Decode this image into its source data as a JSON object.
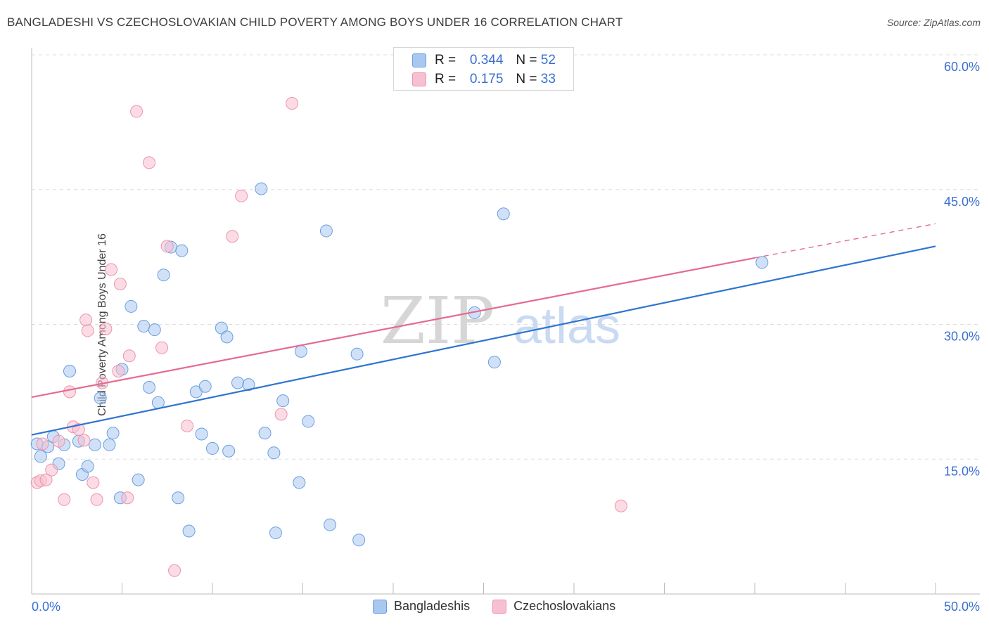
{
  "title": "BANGLADESHI VS CZECHOSLOVAKIAN CHILD POVERTY AMONG BOYS UNDER 16 CORRELATION CHART",
  "source": "Source: ZipAtlas.com",
  "watermark": {
    "zip": "ZIP",
    "atlas": "atlas"
  },
  "inset_legend": [
    {
      "r_label": "R =",
      "r_value": "0.344",
      "n_label": "N =",
      "n_value": "52",
      "color": "#a9c8f0",
      "border": "#6a9ee0"
    },
    {
      "r_label": "R =",
      "r_value": "0.175",
      "n_label": "N =",
      "n_value": "33",
      "color": "#f7c0d0",
      "border": "#ee93ad"
    }
  ],
  "chart_data": {
    "type": "scatter",
    "title": "BANGLADESHI VS CZECHOSLOVAKIAN CHILD POVERTY AMONG BOYS UNDER 16 CORRELATION CHART",
    "ylabel": "Child Poverty Among Boys Under 16",
    "xlim": [
      0,
      50
    ],
    "ylim": [
      0,
      60
    ],
    "x_tick_labels": [
      "0.0%",
      "50.0%"
    ],
    "y_ticks": [
      15,
      30,
      45,
      60
    ],
    "y_tick_labels": [
      "15.0%",
      "30.0%",
      "45.0%",
      "60.0%"
    ],
    "grid": true,
    "legend_position": "bottom",
    "series": [
      {
        "name": "Bangladeshis",
        "color": "#a9c8f0",
        "edge": "#6a9ee0",
        "line_color": "#2f74d0",
        "trend": {
          "x": [
            0,
            50
          ],
          "y": [
            17.7,
            38.7
          ]
        },
        "points": [
          [
            0.3,
            16.7
          ],
          [
            0.5,
            15.3
          ],
          [
            0.9,
            16.4
          ],
          [
            1.2,
            17.5
          ],
          [
            1.5,
            14.5
          ],
          [
            1.8,
            16.6
          ],
          [
            2.1,
            24.8
          ],
          [
            2.6,
            17.0
          ],
          [
            2.8,
            13.3
          ],
          [
            3.1,
            14.2
          ],
          [
            3.5,
            16.6
          ],
          [
            3.8,
            21.8
          ],
          [
            4.3,
            16.6
          ],
          [
            4.5,
            17.9
          ],
          [
            4.9,
            10.7
          ],
          [
            5.0,
            25.0
          ],
          [
            5.5,
            32.0
          ],
          [
            5.9,
            12.7
          ],
          [
            6.2,
            29.8
          ],
          [
            6.5,
            23.0
          ],
          [
            6.8,
            29.4
          ],
          [
            7.0,
            21.3
          ],
          [
            7.3,
            35.5
          ],
          [
            7.7,
            38.6
          ],
          [
            8.1,
            10.7
          ],
          [
            8.3,
            38.2
          ],
          [
            8.7,
            7.0
          ],
          [
            9.1,
            22.5
          ],
          [
            9.4,
            17.8
          ],
          [
            9.6,
            23.1
          ],
          [
            10.0,
            16.2
          ],
          [
            10.5,
            29.6
          ],
          [
            10.8,
            28.6
          ],
          [
            10.9,
            15.9
          ],
          [
            11.4,
            23.5
          ],
          [
            12.0,
            23.3
          ],
          [
            12.7,
            45.1
          ],
          [
            12.9,
            17.9
          ],
          [
            13.4,
            15.7
          ],
          [
            13.5,
            6.8
          ],
          [
            13.9,
            21.5
          ],
          [
            14.8,
            12.4
          ],
          [
            14.9,
            27.0
          ],
          [
            15.3,
            19.2
          ],
          [
            16.3,
            40.4
          ],
          [
            16.5,
            7.7
          ],
          [
            18.0,
            26.7
          ],
          [
            18.1,
            6.0
          ],
          [
            24.5,
            31.3
          ],
          [
            25.6,
            25.8
          ],
          [
            26.1,
            42.3
          ],
          [
            40.4,
            36.9
          ]
        ]
      },
      {
        "name": "Czechoslovakians",
        "color": "#f7c0d0",
        "edge": "#ee93ad",
        "line_color": "#e56a92",
        "trend": {
          "x": [
            0,
            40.0
          ],
          "y": [
            21.9,
            37.4
          ]
        },
        "trend_dashed": {
          "x": [
            40.0,
            50
          ],
          "y": [
            37.4,
            41.2
          ]
        },
        "points": [
          [
            0.3,
            12.4
          ],
          [
            0.5,
            12.6
          ],
          [
            0.8,
            12.7
          ],
          [
            1.1,
            13.8
          ],
          [
            1.5,
            17.0
          ],
          [
            1.8,
            10.5
          ],
          [
            2.1,
            22.5
          ],
          [
            2.3,
            18.6
          ],
          [
            2.6,
            18.3
          ],
          [
            3.0,
            30.5
          ],
          [
            3.1,
            29.3
          ],
          [
            3.4,
            12.4
          ],
          [
            3.6,
            10.5
          ],
          [
            3.9,
            23.5
          ],
          [
            4.1,
            29.5
          ],
          [
            4.4,
            36.1
          ],
          [
            4.8,
            24.8
          ],
          [
            4.9,
            34.5
          ],
          [
            5.3,
            10.7
          ],
          [
            5.4,
            26.5
          ],
          [
            5.8,
            53.7
          ],
          [
            6.5,
            48.0
          ],
          [
            7.2,
            27.4
          ],
          [
            7.5,
            38.7
          ],
          [
            7.9,
            2.6
          ],
          [
            8.6,
            18.7
          ],
          [
            11.1,
            39.8
          ],
          [
            11.6,
            44.3
          ],
          [
            13.8,
            20.0
          ],
          [
            14.4,
            54.6
          ],
          [
            32.6,
            9.8
          ],
          [
            0.6,
            16.7
          ],
          [
            2.9,
            17.1
          ]
        ]
      }
    ]
  }
}
